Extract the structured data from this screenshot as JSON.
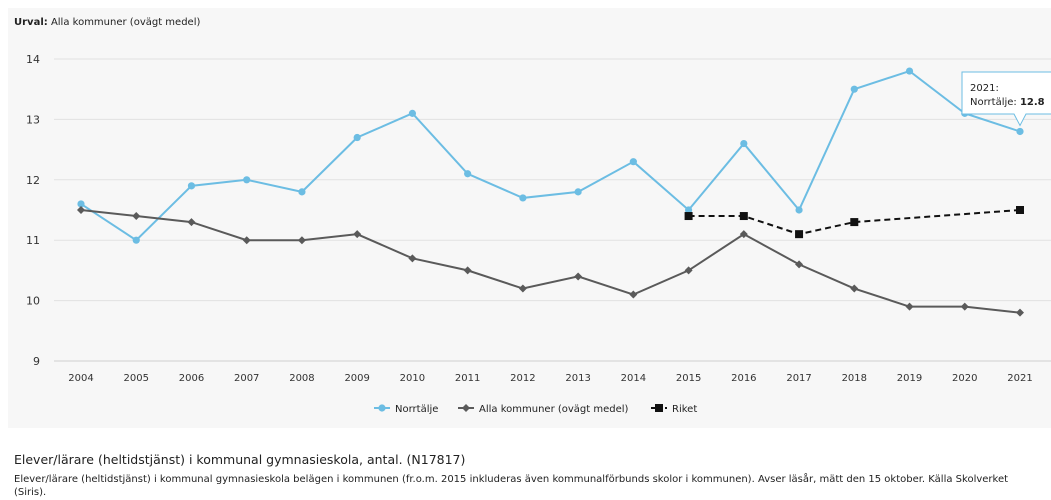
{
  "header": {
    "urval_label": "Urval:",
    "urval_value": "Alla kommuner (ovägt medel)"
  },
  "chart_data": {
    "type": "line",
    "categories": [
      "2004",
      "2005",
      "2006",
      "2007",
      "2008",
      "2009",
      "2010",
      "2011",
      "2012",
      "2013",
      "2014",
      "2015",
      "2016",
      "2017",
      "2018",
      "2019",
      "2020",
      "2021"
    ],
    "ylim": [
      9,
      14
    ],
    "yticks": [
      9,
      10,
      11,
      12,
      13,
      14
    ],
    "grid": true,
    "legend_position": "bottom",
    "series": [
      {
        "name": "Norrtälje",
        "color": "#6cbde3",
        "dash": false,
        "marker": "circle",
        "values": [
          11.6,
          11.0,
          11.9,
          12.0,
          11.8,
          12.7,
          13.1,
          12.1,
          11.7,
          11.8,
          12.3,
          11.5,
          12.6,
          11.5,
          13.5,
          13.8,
          13.1,
          12.8
        ]
      },
      {
        "name": "Alla kommuner (ovägt medel)",
        "color": "#5a5a5a",
        "dash": false,
        "marker": "diamond",
        "values": [
          11.5,
          11.4,
          11.3,
          11.0,
          11.0,
          11.1,
          10.7,
          10.5,
          10.2,
          10.4,
          10.1,
          10.5,
          11.1,
          10.6,
          10.2,
          9.9,
          9.9,
          9.8
        ]
      },
      {
        "name": "Riket",
        "color": "#111111",
        "dash": true,
        "marker": "square",
        "values": [
          null,
          null,
          null,
          null,
          null,
          null,
          null,
          null,
          null,
          null,
          null,
          11.4,
          11.4,
          11.1,
          11.3,
          null,
          null,
          11.5
        ]
      }
    ],
    "tooltip": {
      "year": "2021:",
      "series_label": "Norrtälje:",
      "value": "12.8"
    }
  },
  "footer": {
    "title": "Elever/lärare (heltidstjänst) i kommunal gymnasieskola, antal. (N17817)",
    "description": "Elever/lärare (heltidstjänst) i kommunal gymnasieskola belägen i kommunen (fr.o.m. 2015 inkluderas även kommunalförbunds skolor i kommunen). Avser läsår, mätt den 15 oktober. Källa Skolverket (Siris)."
  }
}
